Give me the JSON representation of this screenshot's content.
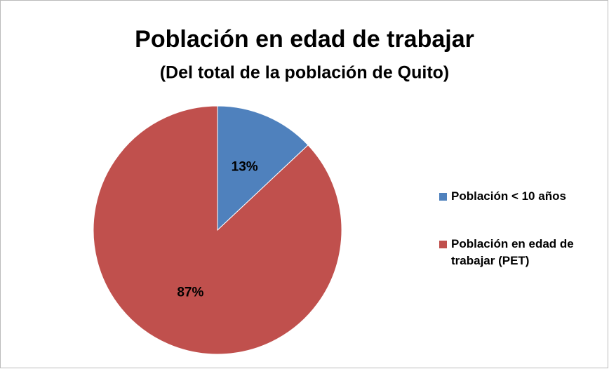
{
  "chart_data": {
    "type": "pie",
    "title": "Población en edad de trabajar",
    "subtitle": "(Del total de la población de Quito)",
    "categories": [
      "Población < 10 años",
      "Población en edad de trabajar (PET)"
    ],
    "values": [
      13,
      87
    ],
    "value_labels": [
      "13%",
      "87%"
    ],
    "colors": [
      "#4f81bd",
      "#c0504d"
    ],
    "legend": "right"
  }
}
